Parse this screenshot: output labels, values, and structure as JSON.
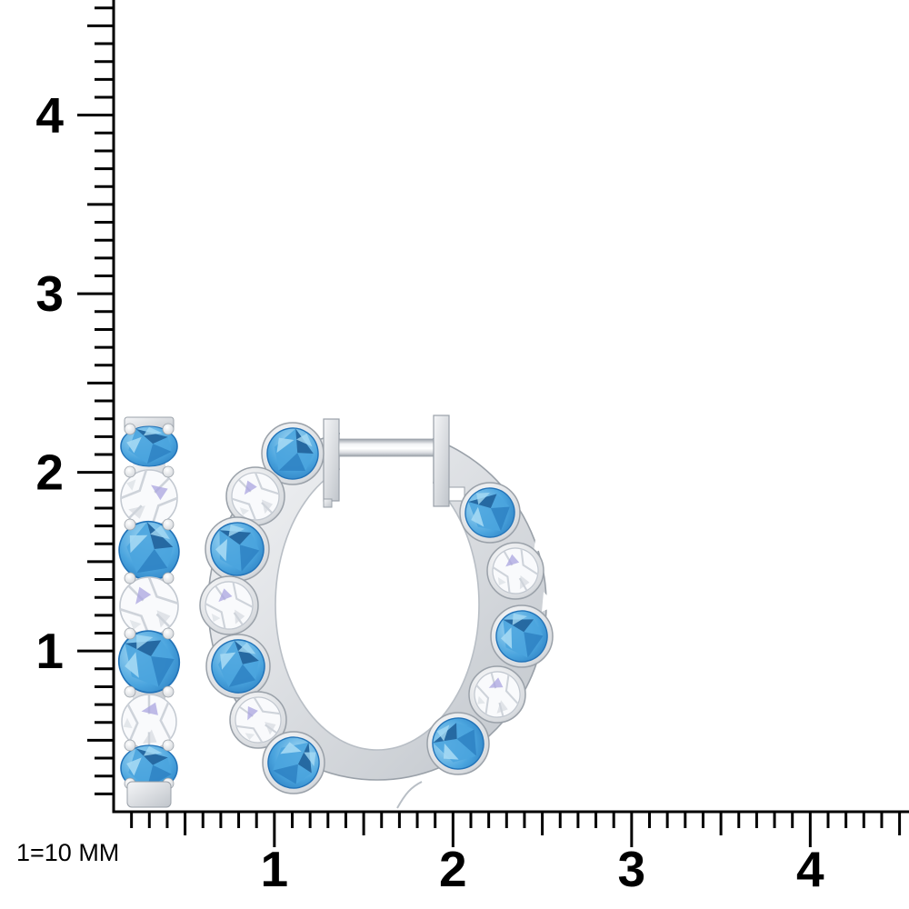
{
  "scale_note": "1=10 MM",
  "rulers": {
    "vertical": {
      "labels": [
        "4",
        "3",
        "2",
        "1"
      ]
    },
    "horizontal": {
      "labels": [
        "1",
        "2",
        "3",
        "4"
      ]
    },
    "minor_ticks_per_unit": 10
  },
  "earrings": {
    "side_view": {
      "stones": [
        "blue",
        "white",
        "blue",
        "white",
        "blue",
        "white",
        "blue"
      ]
    },
    "front_view": {
      "stones": [
        "blue",
        "white",
        "blue",
        "white",
        "blue",
        "white",
        "blue",
        "blue",
        "white",
        "blue",
        "white",
        "blue"
      ]
    }
  },
  "colors": {
    "background": "#ffffff",
    "ruler": "#000000",
    "metal_light": "#f4f5f7",
    "metal_mid": "#d8dbdf",
    "metal_dark": "#9aa1a9",
    "metal_edge": "#b8bec5",
    "topaz_light": "#a5d9f4",
    "topaz_mid": "#4aa4de",
    "topaz_dark": "#2273b8",
    "topaz_deep": "#18548e",
    "diamond_base": "#f9fafc",
    "diamond_facet": "#ced3da",
    "diamond_edge": "#c2c8d0",
    "lavender_accent": "#aaa4e0"
  }
}
